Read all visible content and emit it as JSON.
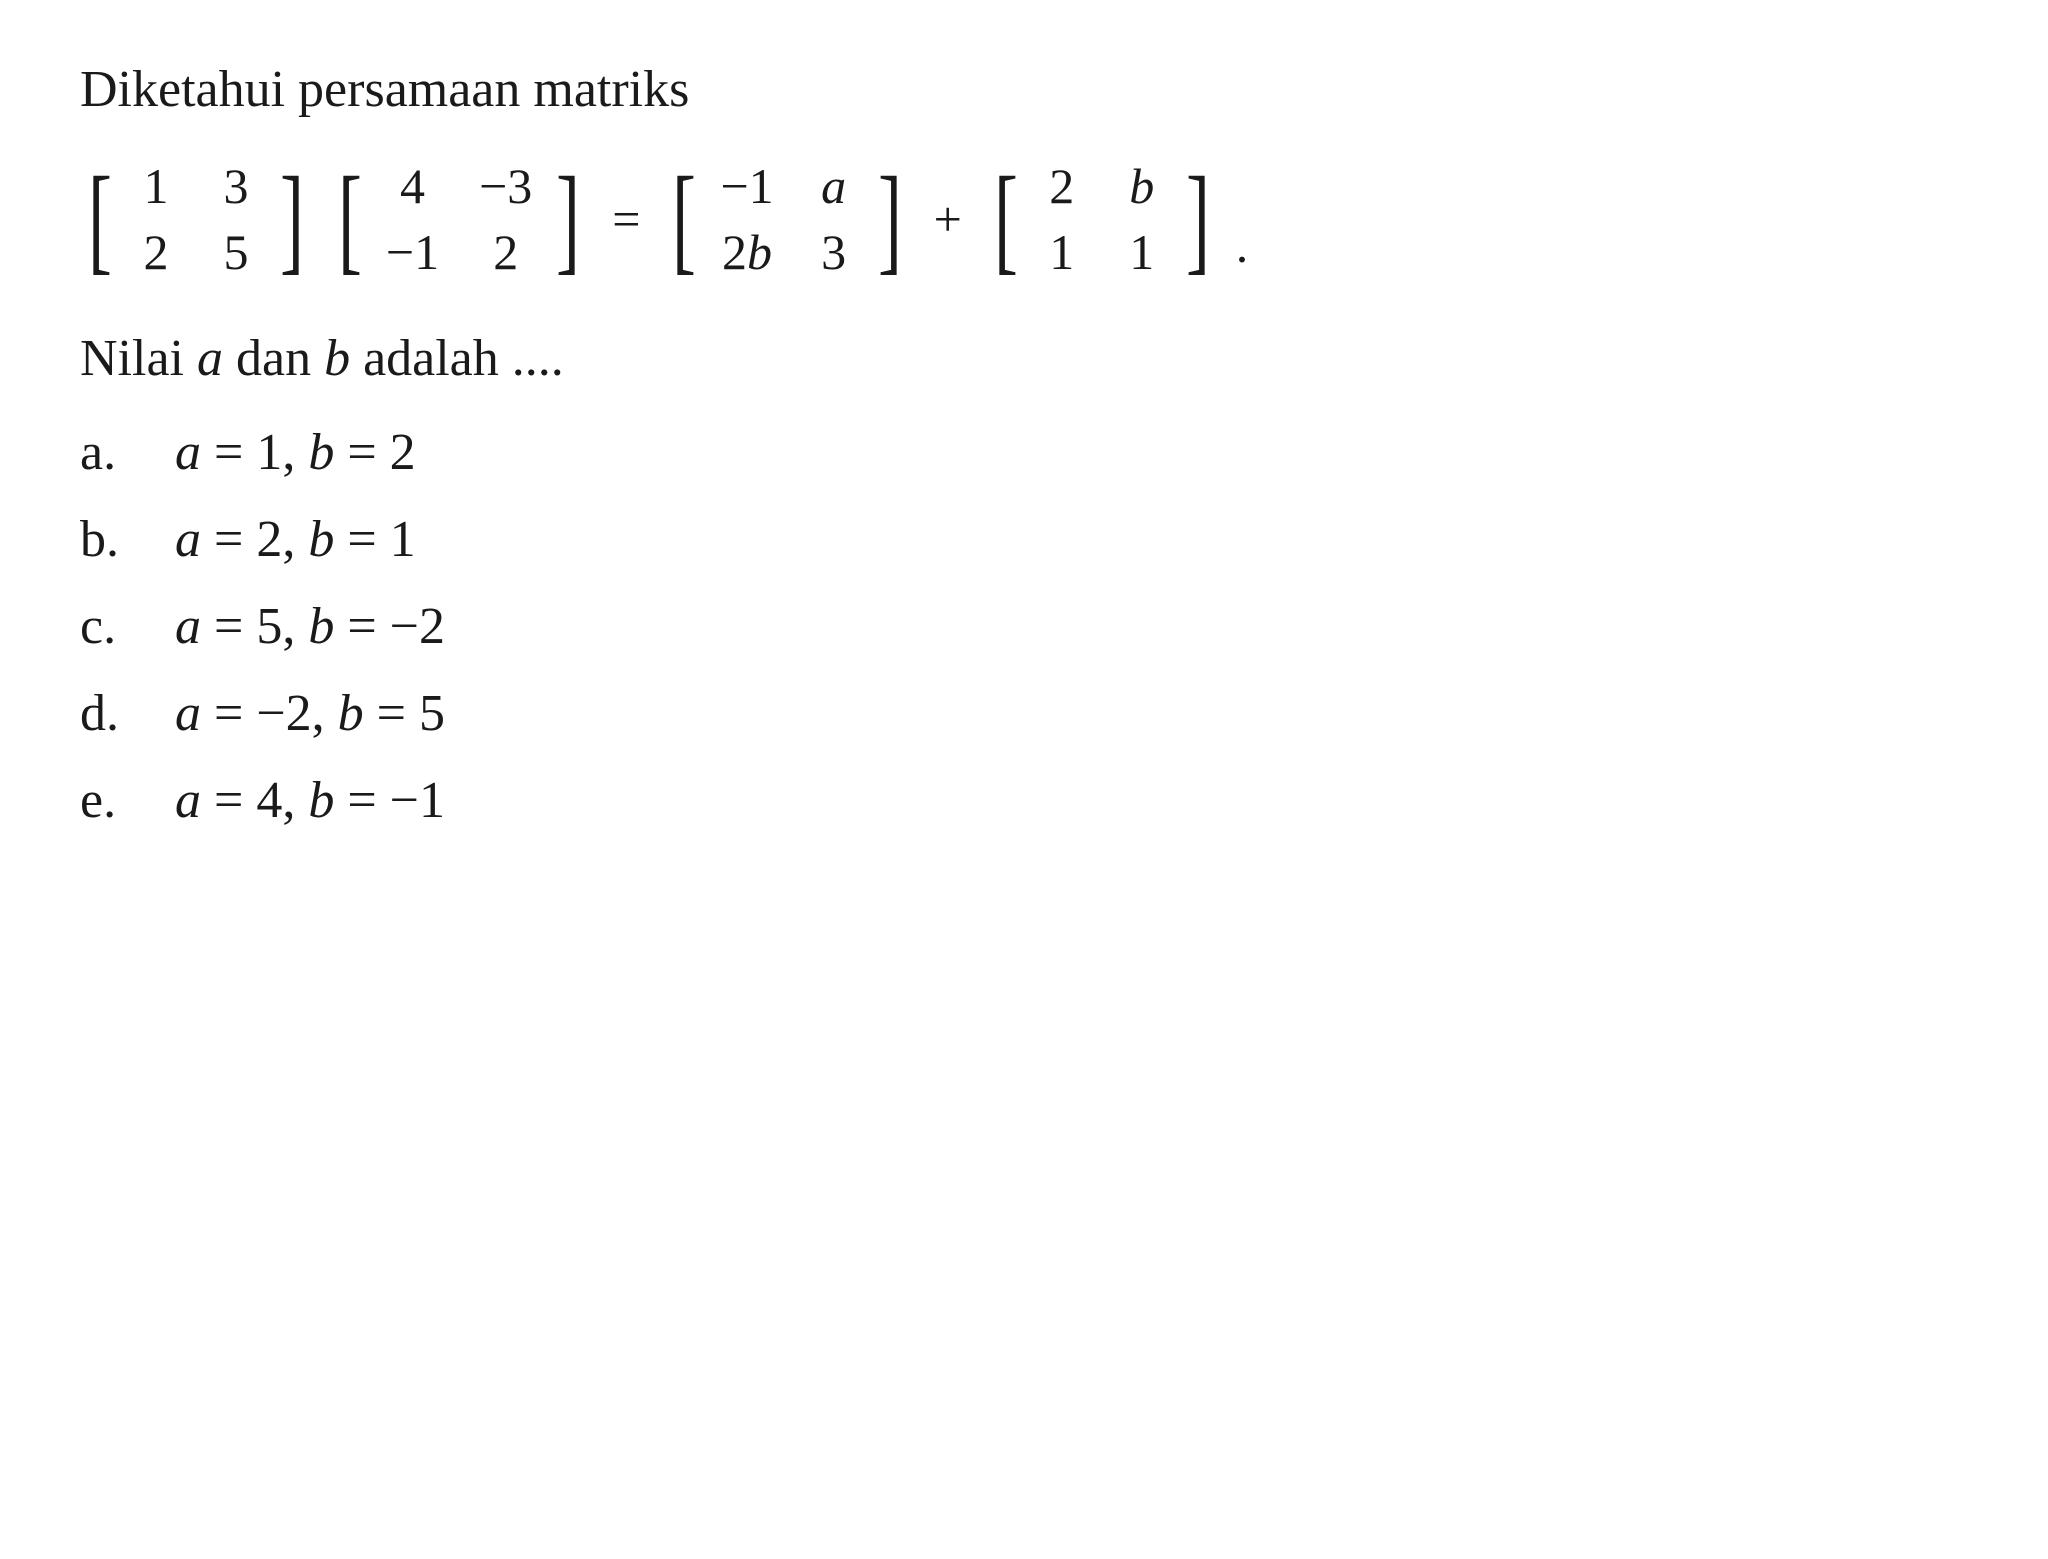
{
  "question": "Diketahui persamaan matriks",
  "matrices": {
    "m1": {
      "r1c1": "1",
      "r1c2": "3",
      "r2c1": "2",
      "r2c2": "5"
    },
    "m2": {
      "r1c1": "4",
      "r1c2": "−3",
      "r2c1": "−1",
      "r2c2": "2"
    },
    "m3": {
      "r1c1": "−1",
      "r1c2": "a",
      "r2c1": "2b",
      "r2c2": "3"
    },
    "m4": {
      "r1c1": "2",
      "r1c2": "b",
      "r2c1": "1",
      "r2c2": "1"
    }
  },
  "equals": "=",
  "plus": "+",
  "period": ".",
  "prompt_prefix": "Nilai ",
  "prompt_var_a": "a",
  "prompt_mid": " dan ",
  "prompt_var_b": "b",
  "prompt_suffix": " adalah ....",
  "options": {
    "a": {
      "letter": "a.",
      "eq": "a = 1, b = 2"
    },
    "b": {
      "letter": "b.",
      "eq": "a = 2, b = 1"
    },
    "c": {
      "letter": "c.",
      "eq": "a = 5, b = −2"
    },
    "d": {
      "letter": "d.",
      "eq": "a = −2, b = 5"
    },
    "e": {
      "letter": "e.",
      "eq": "a = 4, b = −1"
    }
  },
  "style": {
    "font_family": "Times New Roman",
    "base_fontsize": 52,
    "text_color": "#1a1a1a",
    "background_color": "#ffffff",
    "bracket_scale": 0.6,
    "matrix_gap_col": 40,
    "matrix_gap_row": 8,
    "option_gap": 28,
    "option_letter_width": 95
  }
}
